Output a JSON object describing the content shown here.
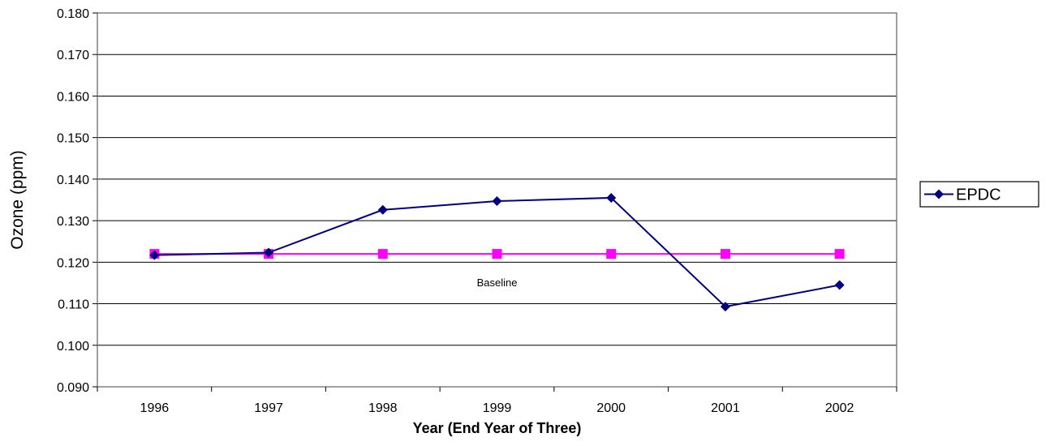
{
  "chart_data": {
    "type": "line",
    "title": "",
    "xlabel": "Year (End Year of Three)",
    "ylabel": "Ozone (ppm)",
    "categories": [
      "1996",
      "1997",
      "1998",
      "1999",
      "2000",
      "2001",
      "2002"
    ],
    "ylim": [
      0.09,
      0.18
    ],
    "yticks": [
      "0.090",
      "0.100",
      "0.110",
      "0.120",
      "0.130",
      "0.140",
      "0.150",
      "0.160",
      "0.170",
      "0.180"
    ],
    "grid": "horizontal",
    "legend_position": "right",
    "series": [
      {
        "name": "EPDC",
        "color": "#000080",
        "marker": "diamond",
        "values": [
          0.1217,
          0.1223,
          0.1326,
          0.1347,
          0.1355,
          0.1093,
          0.1145
        ]
      },
      {
        "color": "#FF00FF",
        "marker": "square",
        "values": [
          0.122,
          0.122,
          0.122,
          0.122,
          0.122,
          0.122,
          0.122
        ]
      }
    ],
    "annotations": [
      {
        "text": "Baseline",
        "x": "1999",
        "y": 0.115
      }
    ]
  }
}
